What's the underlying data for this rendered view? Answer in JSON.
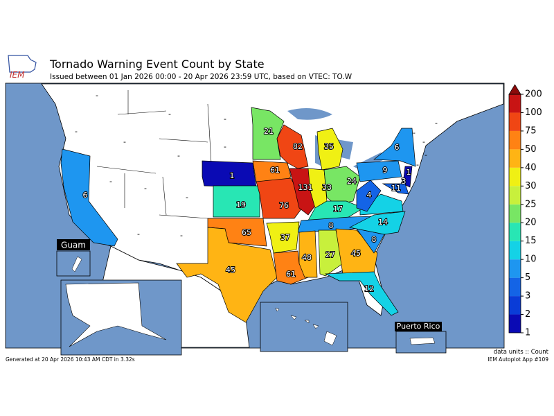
{
  "header": {
    "title": "Tornado Warning Event Count by State",
    "subtitle": "Issued between 01 Jan 2026 00:00 - 20 Apr 2026 23:59 UTC, based on VTEC: TO.W"
  },
  "logo": "IEM",
  "map": {
    "state_counts": [
      6,
      21,
      82,
      35,
      61,
      1,
      19,
      76,
      131,
      33,
      24,
      17,
      8,
      37,
      65,
      45,
      61,
      48,
      27,
      45,
      12,
      8,
      14,
      11,
      4,
      9,
      6,
      1,
      3
    ],
    "no_data_label": "-",
    "insets": [
      "Guam",
      "Puerto Rico"
    ]
  },
  "colorbar": {
    "levels": [
      1,
      2,
      3,
      5,
      10,
      15,
      20,
      25,
      30,
      40,
      50,
      75,
      100,
      200
    ],
    "colors": [
      "#0a0ab4",
      "#0a3cd7",
      "#1464e6",
      "#1e96f0",
      "#14d2e6",
      "#28e6b4",
      "#78e664",
      "#c8f03c",
      "#f0f014",
      "#ffb414",
      "#ff8214",
      "#f04614",
      "#c81414"
    ],
    "extend_color": "#8b0a0a"
  },
  "footer": {
    "generated": "Generated at 20 Apr 2026 10:43 AM CDT in 3.32s",
    "units": "data units :: Count",
    "app": "IEM Autoplot App #109"
  }
}
